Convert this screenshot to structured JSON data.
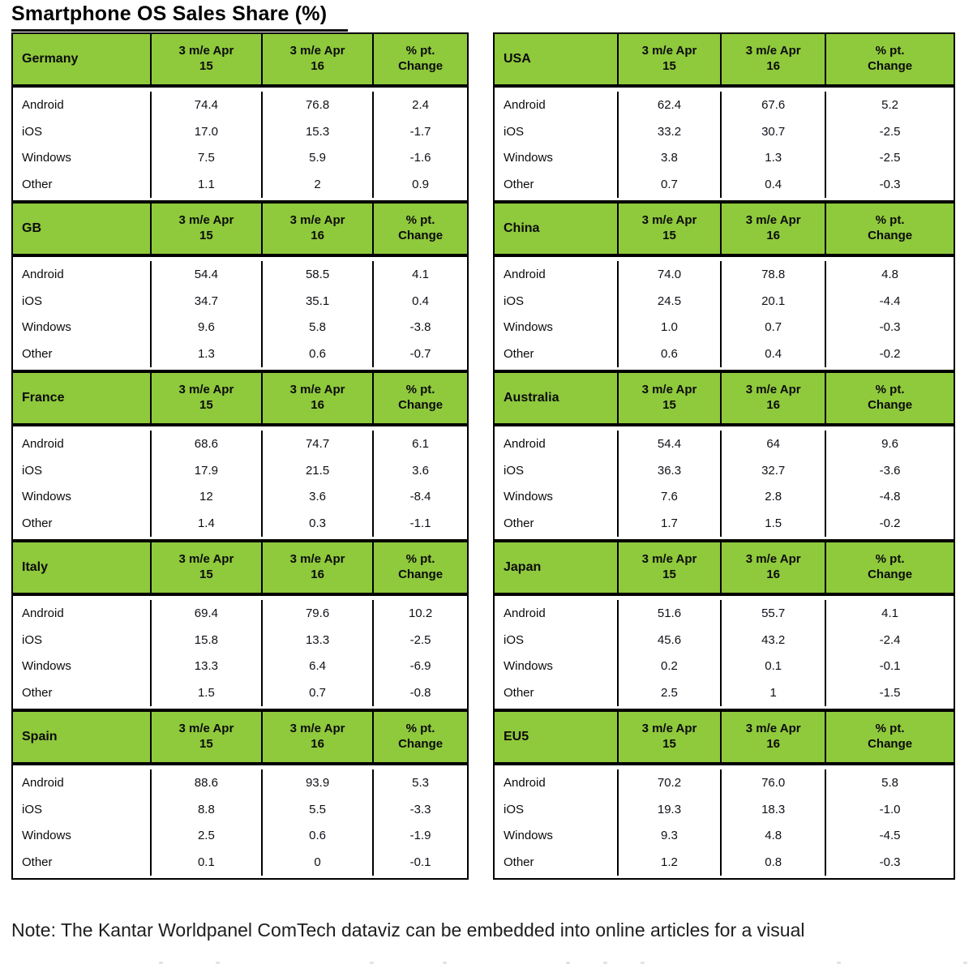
{
  "title": "Smartphone OS Sales Share (%)",
  "note": "Note: The Kantar Worldpanel ComTech dataviz can be embedded into online articles for a visual",
  "colors": {
    "header_green": "#8FC93C",
    "border_black": "#000000",
    "note_text": "#1e1e1e"
  },
  "chart_data": {
    "type": "table",
    "title": "Smartphone OS Sales Share (%)",
    "column_headers": [
      {
        "line1": "3 m/e Apr",
        "line2": "15"
      },
      {
        "line1": "3 m/e Apr",
        "line2": "16"
      },
      {
        "line1": "% pt.",
        "line2": "Change"
      }
    ],
    "os_labels": [
      "Android",
      "iOS",
      "Windows",
      "Other"
    ],
    "countries": [
      {
        "name": "Germany",
        "side": "left",
        "rows": [
          [
            "Android",
            "74.4",
            "76.8",
            "2.4"
          ],
          [
            "iOS",
            "17.0",
            "15.3",
            "-1.7"
          ],
          [
            "Windows",
            "7.5",
            "5.9",
            "-1.6"
          ],
          [
            "Other",
            "1.1",
            "2",
            "0.9"
          ]
        ]
      },
      {
        "name": "USA",
        "side": "right",
        "rows": [
          [
            "Android",
            "62.4",
            "67.6",
            "5.2"
          ],
          [
            "iOS",
            "33.2",
            "30.7",
            "-2.5"
          ],
          [
            "Windows",
            "3.8",
            "1.3",
            "-2.5"
          ],
          [
            "Other",
            "0.7",
            "0.4",
            "-0.3"
          ]
        ]
      },
      {
        "name": "GB",
        "side": "left",
        "rows": [
          [
            "Android",
            "54.4",
            "58.5",
            "4.1"
          ],
          [
            "iOS",
            "34.7",
            "35.1",
            "0.4"
          ],
          [
            "Windows",
            "9.6",
            "5.8",
            "-3.8"
          ],
          [
            "Other",
            "1.3",
            "0.6",
            "-0.7"
          ]
        ]
      },
      {
        "name": "China",
        "side": "right",
        "rows": [
          [
            "Android",
            "74.0",
            "78.8",
            "4.8"
          ],
          [
            "iOS",
            "24.5",
            "20.1",
            "-4.4"
          ],
          [
            "Windows",
            "1.0",
            "0.7",
            "-0.3"
          ],
          [
            "Other",
            "0.6",
            "0.4",
            "-0.2"
          ]
        ]
      },
      {
        "name": "France",
        "side": "left",
        "rows": [
          [
            "Android",
            "68.6",
            "74.7",
            "6.1"
          ],
          [
            "iOS",
            "17.9",
            "21.5",
            "3.6"
          ],
          [
            "Windows",
            "12",
            "3.6",
            "-8.4"
          ],
          [
            "Other",
            "1.4",
            "0.3",
            "-1.1"
          ]
        ]
      },
      {
        "name": "Australia",
        "side": "right",
        "rows": [
          [
            "Android",
            "54.4",
            "64",
            "9.6"
          ],
          [
            "iOS",
            "36.3",
            "32.7",
            "-3.6"
          ],
          [
            "Windows",
            "7.6",
            "2.8",
            "-4.8"
          ],
          [
            "Other",
            "1.7",
            "1.5",
            "-0.2"
          ]
        ]
      },
      {
        "name": "Italy",
        "side": "left",
        "rows": [
          [
            "Android",
            "69.4",
            "79.6",
            "10.2"
          ],
          [
            "iOS",
            "15.8",
            "13.3",
            "-2.5"
          ],
          [
            "Windows",
            "13.3",
            "6.4",
            "-6.9"
          ],
          [
            "Other",
            "1.5",
            "0.7",
            "-0.8"
          ]
        ]
      },
      {
        "name": "Japan",
        "side": "right",
        "rows": [
          [
            "Android",
            "51.6",
            "55.7",
            "4.1"
          ],
          [
            "iOS",
            "45.6",
            "43.2",
            "-2.4"
          ],
          [
            "Windows",
            "0.2",
            "0.1",
            "-0.1"
          ],
          [
            "Other",
            "2.5",
            "1",
            "-1.5"
          ]
        ]
      },
      {
        "name": "Spain",
        "side": "left",
        "rows": [
          [
            "Android",
            "88.6",
            "93.9",
            "5.3"
          ],
          [
            "iOS",
            "8.8",
            "5.5",
            "-3.3"
          ],
          [
            "Windows",
            "2.5",
            "0.6",
            "-1.9"
          ],
          [
            "Other",
            "0.1",
            "0",
            "-0.1"
          ]
        ]
      },
      {
        "name": "EU5",
        "side": "right",
        "rows": [
          [
            "Android",
            "70.2",
            "76.0",
            "5.8"
          ],
          [
            "iOS",
            "19.3",
            "18.3",
            "-1.0"
          ],
          [
            "Windows",
            "9.3",
            "4.8",
            "-4.5"
          ],
          [
            "Other",
            "1.2",
            "0.8",
            "-0.3"
          ]
        ]
      }
    ]
  }
}
